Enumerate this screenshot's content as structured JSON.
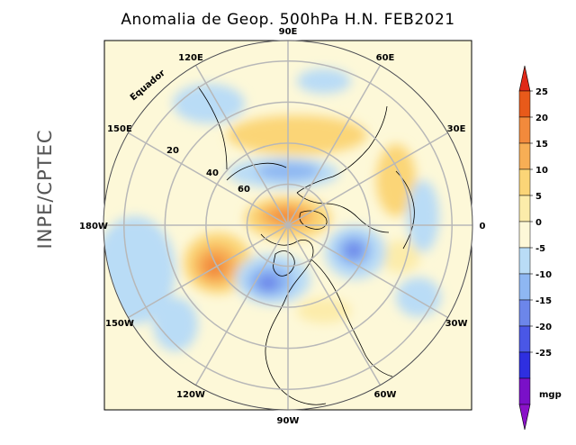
{
  "title": "Anomalia de Geop. 500hPa H.N. FEB2021",
  "side_label": "INPE/CPTEC",
  "longitude_labels": [
    {
      "text": "90E",
      "lon": 90
    },
    {
      "text": "60E",
      "lon": 60
    },
    {
      "text": "30E",
      "lon": 30
    },
    {
      "text": "0",
      "lon": 0
    },
    {
      "text": "30W",
      "lon": -30
    },
    {
      "text": "60W",
      "lon": -60
    },
    {
      "text": "90W",
      "lon": -90
    },
    {
      "text": "120W",
      "lon": -120
    },
    {
      "text": "150W",
      "lon": -150
    },
    {
      "text": "180W",
      "lon": 180
    },
    {
      "text": "150E",
      "lon": 150
    },
    {
      "text": "120E",
      "lon": 120
    }
  ],
  "latitude_labels": [
    "Equador",
    "20",
    "40",
    "60"
  ],
  "colorbar": {
    "unit": "mgp",
    "ticks": [
      "25",
      "20",
      "15",
      "10",
      "5",
      "0",
      "-5",
      "-10",
      "-15",
      "-20",
      "-25"
    ],
    "colors": [
      "#e85a1a",
      "#f28a3c",
      "#f7ae55",
      "#fbd577",
      "#fcecaa",
      "#fdf8d8",
      "#b9dcf6",
      "#8eb7f2",
      "#6c86ea",
      "#4a57e6",
      "#2e2fe0",
      "#7a10c8"
    ],
    "top_arrow_color": "#e02818",
    "bottom_arrow_color": "#8a12c8"
  }
}
